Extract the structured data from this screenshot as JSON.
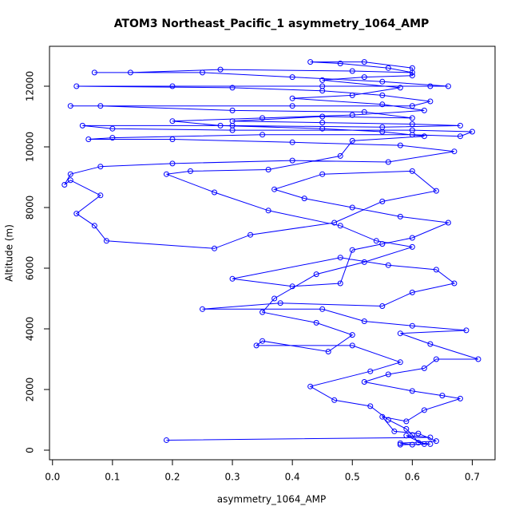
{
  "chart_data": {
    "type": "line",
    "title": "ATOM3 Northeast_Pacific_1 asymmetry_1064_AMP",
    "x_label": "asymmetry_1064_AMP",
    "y_label": "Altitude (m)",
    "color": "#0000ff",
    "xlim": [
      -0.005,
      0.738
    ],
    "ylim": [
      -316,
      13316
    ],
    "xticks": [
      {
        "value": 0,
        "label": "0.0"
      },
      0.1,
      0.2,
      0.3,
      0.4,
      0.5,
      0.6,
      0.7
    ],
    "yticks": [
      0,
      2000,
      4000,
      6000,
      8000,
      10000,
      12000
    ],
    "x": [
      0.19,
      0.63,
      0.59,
      0.62,
      0.6,
      0.58,
      0.64,
      0.61,
      0.57,
      0.55,
      0.59,
      0.62,
      0.68,
      0.65,
      0.6,
      0.52,
      0.56,
      0.62,
      0.64,
      0.71,
      0.63,
      0.58,
      0.69,
      0.6,
      0.52,
      0.45,
      0.25,
      0.38,
      0.55,
      0.6,
      0.67,
      0.64,
      0.56,
      0.48,
      0.3,
      0.4,
      0.48,
      0.5,
      0.55,
      0.6,
      0.66,
      0.58,
      0.5,
      0.42,
      0.37,
      0.45,
      0.6,
      0.64,
      0.55,
      0.47,
      0.33,
      0.27,
      0.09,
      0.07,
      0.04,
      0.08,
      0.03,
      0.02,
      0.03,
      0.08,
      0.2,
      0.4,
      0.56,
      0.67,
      0.58,
      0.4,
      0.2,
      0.06,
      0.1,
      0.35,
      0.6,
      0.68,
      0.7,
      0.6,
      0.3,
      0.1,
      0.05,
      0.3,
      0.55,
      0.68,
      0.6,
      0.45,
      0.3,
      0.45,
      0.6,
      0.52,
      0.3,
      0.08,
      0.03,
      0.4,
      0.6,
      0.63,
      0.55,
      0.45,
      0.3,
      0.04,
      0.2,
      0.45,
      0.63,
      0.66,
      0.55,
      0.4,
      0.25,
      0.07,
      0.13,
      0.28,
      0.5,
      0.6,
      0.56,
      0.48,
      0.43,
      0.52,
      0.6,
      0.6,
      0.52,
      0.45,
      0.58,
      0.5,
      0.4,
      0.55,
      0.62,
      0.5,
      0.35,
      0.2,
      0.28,
      0.45,
      0.55,
      0.62,
      0.5,
      0.48,
      0.36,
      0.23,
      0.19,
      0.27,
      0.36,
      0.48,
      0.54,
      0.6,
      0.52,
      0.44,
      0.37,
      0.35,
      0.44,
      0.5,
      0.46,
      0.35,
      0.34,
      0.5,
      0.58,
      0.53,
      0.43,
      0.47,
      0.53,
      0.56,
      0.59,
      0.6,
      0.61,
      0.63,
      0.58
    ],
    "values": [
      330,
      420,
      480,
      200,
      180,
      230,
      300,
      550,
      620,
      1100,
      950,
      1320,
      1700,
      1800,
      1950,
      2250,
      2500,
      2700,
      3000,
      3000,
      3500,
      3850,
      3950,
      4100,
      4250,
      4650,
      4650,
      4850,
      4750,
      5200,
      5500,
      5950,
      6100,
      6350,
      5650,
      5400,
      5500,
      6600,
      6800,
      7000,
      7500,
      7700,
      8000,
      8300,
      8600,
      9100,
      9200,
      8550,
      8200,
      7500,
      7100,
      6650,
      6900,
      7400,
      7800,
      8400,
      8900,
      8750,
      9100,
      9350,
      9450,
      9550,
      9500,
      9850,
      10050,
      10150,
      10250,
      10250,
      10300,
      10400,
      10400,
      10350,
      10500,
      10550,
      10550,
      10600,
      10700,
      10700,
      10650,
      10700,
      10750,
      10800,
      10850,
      11000,
      10950,
      11150,
      11200,
      11350,
      11350,
      11350,
      11350,
      11500,
      11700,
      11850,
      11950,
      12000,
      12000,
      12000,
      12000,
      12000,
      12150,
      12300,
      12450,
      12450,
      12450,
      12550,
      12500,
      12450,
      12600,
      12750,
      12800,
      12800,
      12600,
      12350,
      12300,
      12200,
      11950,
      11700,
      11600,
      11400,
      11200,
      11050,
      10950,
      10850,
      10700,
      10600,
      10500,
      10350,
      10200,
      9700,
      9250,
      9200,
      9100,
      8500,
      7900,
      7400,
      6900,
      6700,
      6200,
      5800,
      5000,
      4550,
      4200,
      3800,
      3250,
      3600,
      3450,
      3450,
      2900,
      2600,
      2100,
      1650,
      1450,
      1000,
      700,
      500,
      250,
      200,
      180
    ]
  }
}
